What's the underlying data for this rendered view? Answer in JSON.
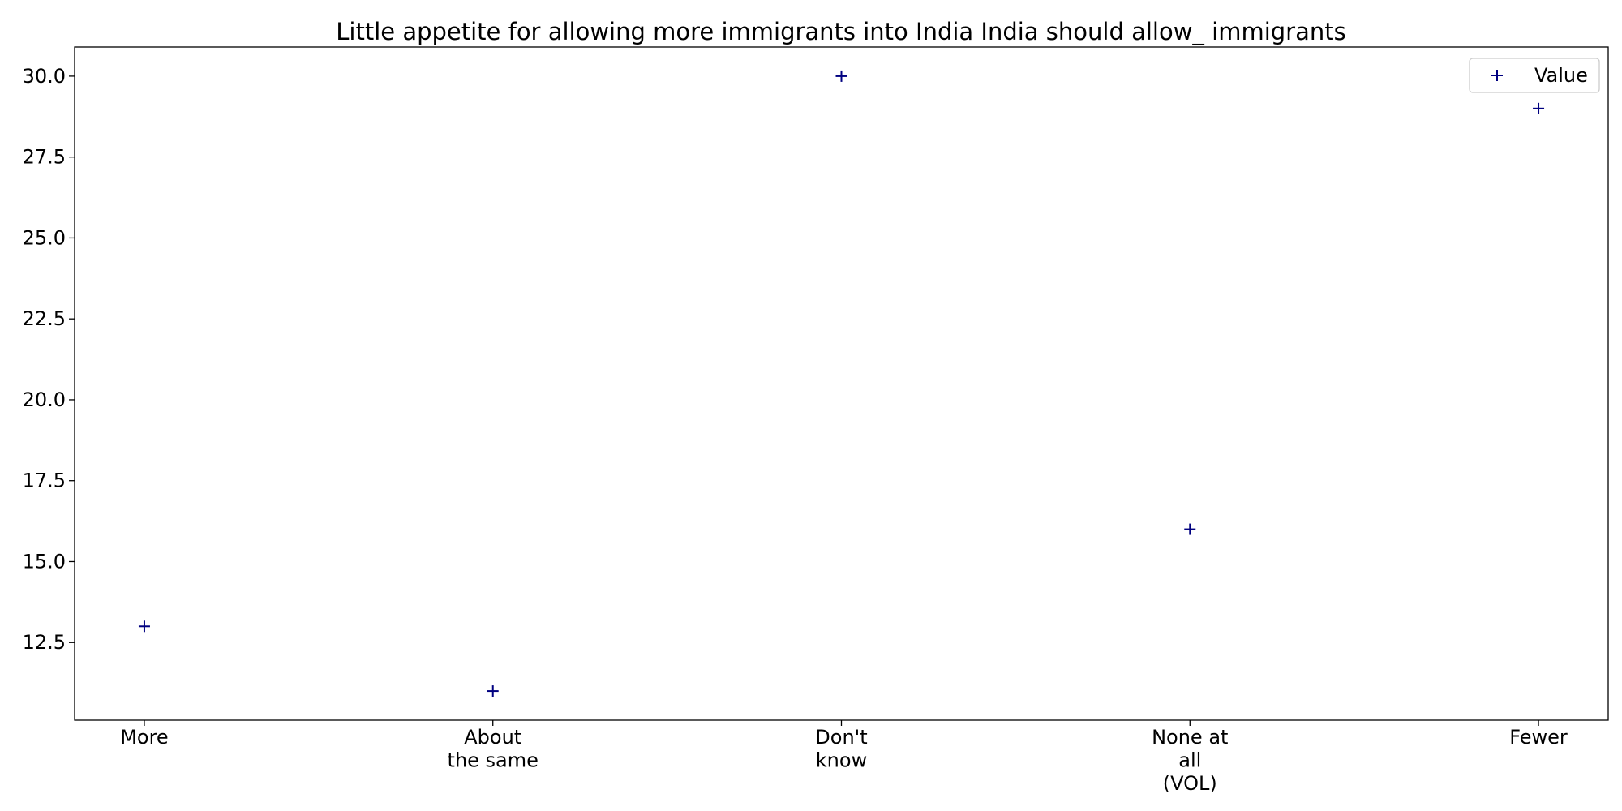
{
  "chart_data": {
    "type": "scatter",
    "title": "Little appetite for allowing more immigrants into India India should allow_ immigrants",
    "xlabel": "",
    "ylabel": "",
    "categories": [
      [
        "More"
      ],
      [
        "About",
        "the same"
      ],
      [
        "Don't",
        "know"
      ],
      [
        "None at",
        "all",
        "(VOL)"
      ],
      [
        "Fewer"
      ]
    ],
    "series": [
      {
        "name": "Value",
        "values": [
          13,
          11,
          30,
          16,
          29
        ]
      }
    ],
    "ylim": [
      10.1,
      30.9
    ],
    "yticks": [
      "12.5",
      "15.0",
      "17.5",
      "20.0",
      "22.5",
      "25.0",
      "27.5",
      "30.0"
    ],
    "marker": "plus",
    "marker_color": "#000080",
    "legend_position": "top-right",
    "grid": false
  }
}
